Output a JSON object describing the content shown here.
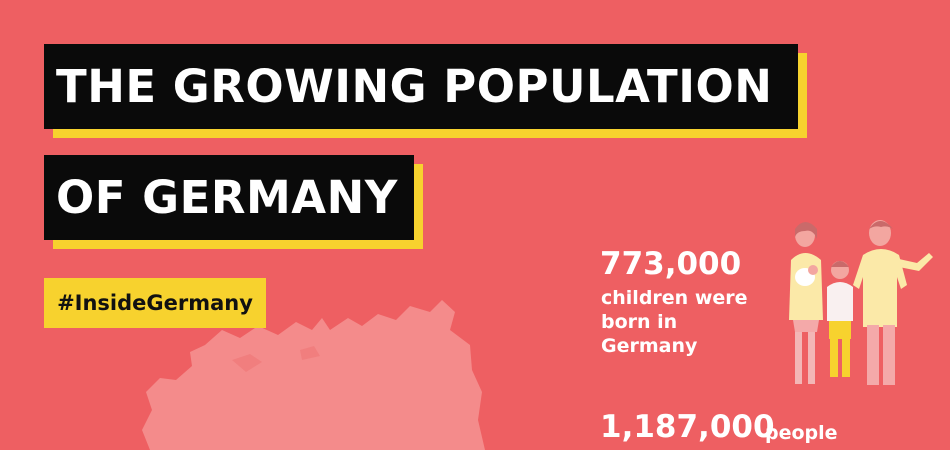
{
  "header": {
    "title_line1": "THE GROWING POPULATION",
    "title_line2": "OF GERMANY",
    "hashtag": "#InsideGermany"
  },
  "stats": {
    "births": {
      "number": "773,000",
      "lines": [
        "children were",
        "born in",
        "Germany"
      ]
    },
    "migration": {
      "number": "1,187,000",
      "label": "people"
    }
  },
  "colors": {
    "background": "#ee5f62",
    "accent": "#f7d22e",
    "title_bg": "#0a0a0a",
    "map": "#f48b8b"
  },
  "icons": {
    "family": "family-illustration",
    "map": "germany-map"
  }
}
